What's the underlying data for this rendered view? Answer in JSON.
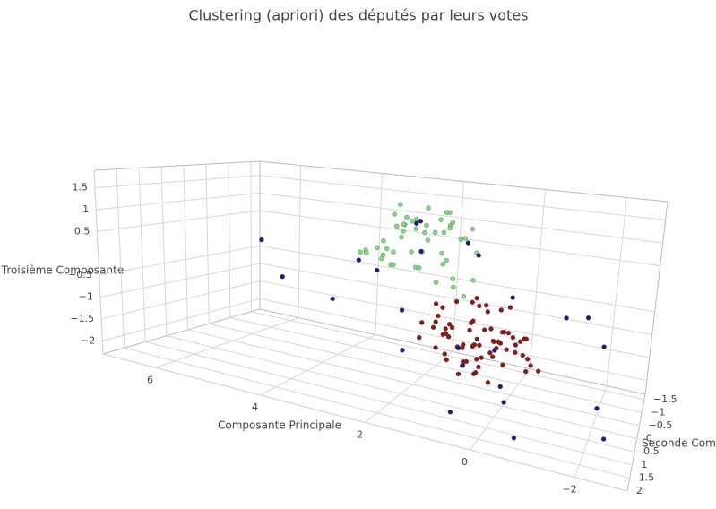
{
  "chart_data": {
    "type": "scatter3d",
    "title": "Clustering (apriori) des députés par leurs votes",
    "x_label": "Composante Principale",
    "y_label": "Seconde Composante",
    "z_label": "Troisième Composante",
    "xlim": [
      -3,
      7
    ],
    "ylim": [
      -1.7,
      2
    ],
    "zlim": [
      -2.3,
      1.9
    ],
    "xticks": [
      {
        "value": -2,
        "label": "−2"
      },
      0,
      2,
      4,
      6
    ],
    "yticks": [
      {
        "value": -1.5,
        "label": "−1.5"
      },
      {
        "value": -1,
        "label": "−1"
      },
      {
        "value": -0.5,
        "label": "−0.5"
      },
      0,
      0.5,
      1,
      1.5,
      2
    ],
    "zticks": [
      {
        "value": -2,
        "label": "−2"
      },
      {
        "value": -1.5,
        "label": "−1.5"
      },
      {
        "value": -1,
        "label": "−1"
      },
      {
        "value": -0.5,
        "label": "−0.5"
      },
      0.5,
      1,
      1.5
    ],
    "grid": true,
    "series": [
      {
        "color": "#7fdc7f",
        "x": [
          2.1,
          1.5,
          2.8,
          1.9,
          2.4,
          1.2,
          3.0,
          2.2,
          1.7,
          2.6,
          1.4,
          2.9,
          2.0,
          1.8,
          2.5,
          1.1,
          3.2,
          2.3,
          1.6,
          2.7,
          2.0,
          1.3,
          2.4,
          1.9,
          2.8,
          1.5,
          2.2,
          3.1,
          1.7,
          2.6,
          0.9,
          2.0,
          2.5,
          1.4,
          3.4,
          2.1,
          1.8,
          2.9,
          1.2,
          2.3,
          3.6,
          1.6,
          2.0,
          2.7,
          1.0,
          2.4,
          3.0,
          1.9,
          2.2,
          1.5
        ],
        "y": [
          -0.6,
          -0.2,
          -0.9,
          0.1,
          -1.1,
          -0.4,
          -0.3,
          0.4,
          -0.8,
          -1.3,
          0.2,
          -0.7,
          -0.5,
          -1.0,
          0.0,
          -0.9,
          -1.2,
          -0.1,
          0.5,
          -0.6,
          -1.4,
          -0.3,
          0.3,
          -0.8,
          -0.2,
          -1.1,
          -0.4,
          0.1,
          -0.6,
          -1.0,
          0.0,
          -0.3,
          -0.7,
          -1.2,
          -0.5,
          0.2,
          -0.9,
          -1.1,
          0.3,
          -0.4,
          -0.8,
          -0.1,
          -1.3,
          0.0,
          -0.6,
          -0.2,
          -0.5,
          -1.0,
          0.4,
          -0.7
        ],
        "z": [
          1.2,
          0.8,
          1.0,
          0.5,
          1.4,
          1.1,
          0.6,
          0.9,
          1.5,
          0.7,
          0.3,
          1.3,
          0.9,
          1.1,
          0.4,
          0.6,
          0.8,
          1.2,
          0.7,
          1.6,
          1.0,
          0.2,
          0.9,
          1.3,
          0.5,
          0.8,
          1.4,
          0.6,
          1.1,
          0.9,
          0.0,
          0.7,
          1.2,
          1.0,
          0.4,
          1.5,
          0.3,
          1.1,
          0.8,
          0.6,
          0.2,
          1.3,
          0.9,
          0.5,
          0.1,
          1.0,
          0.7,
          1.4,
          0.6,
          -0.2
        ]
      },
      {
        "color": "#8b1a1a",
        "x": [
          0.3,
          0.8,
          -0.2,
          0.5,
          1.1,
          0.0,
          0.6,
          -0.4,
          0.9,
          0.2,
          1.3,
          -0.1,
          0.4,
          0.7,
          -0.6,
          1.0,
          0.1,
          0.5,
          -0.3,
          0.8,
          1.2,
          0.3,
          -0.5,
          0.6,
          0.0,
          1.4,
          0.2,
          -0.2,
          0.9,
          0.4,
          1.6,
          -0.7,
          0.5,
          0.1,
          1.0,
          -0.4,
          0.7,
          0.3,
          1.5,
          -0.1,
          0.6,
          0.2,
          -0.8,
          1.1,
          0.4,
          0.0,
          0.8,
          -0.3,
          1.3,
          0.5,
          0.2,
          -0.6,
          0.9,
          0.1,
          1.2,
          0.3,
          -0.2,
          0.7,
          0.5,
          -0.9,
          1.0,
          0.2,
          0.6,
          -0.4,
          0.4,
          1.7,
          0.0,
          0.8,
          -0.1,
          0.3
        ],
        "y": [
          0.3,
          -0.1,
          0.6,
          0.9,
          0.2,
          -0.3,
          0.5,
          0.1,
          0.8,
          -0.5,
          0.4,
          1.0,
          0.0,
          0.7,
          0.3,
          -0.2,
          1.2,
          0.5,
          -0.4,
          0.2,
          0.6,
          0.9,
          0.0,
          -0.1,
          0.4,
          0.3,
          1.1,
          0.7,
          -0.6,
          0.2,
          0.5,
          0.8,
          -0.3,
          0.6,
          0.1,
          0.4,
          1.3,
          -0.2,
          0.0,
          0.5,
          0.9,
          0.2,
          0.6,
          0.7,
          -0.4,
          0.3,
          1.0,
          0.1,
          -0.1,
          0.4,
          0.8,
          0.2,
          0.5,
          -0.5,
          0.3,
          0.6,
          0.0,
          1.1,
          0.2,
          0.4,
          0.7,
          -0.3,
          0.1,
          0.9,
          0.5,
          0.2,
          0.6,
          -0.2,
          0.3,
          1.4
        ],
        "z": [
          -0.5,
          -0.8,
          -0.3,
          -1.0,
          -0.6,
          -0.2,
          -1.2,
          -0.7,
          -0.4,
          -0.9,
          -1.1,
          -0.6,
          -0.1,
          -0.8,
          -0.5,
          -1.3,
          -0.7,
          -0.3,
          -0.9,
          -1.0,
          -0.4,
          -0.6,
          -1.4,
          -0.2,
          -0.8,
          -0.7,
          -1.1,
          -0.5,
          -0.3,
          -1.2,
          -0.9,
          -0.6,
          -0.4,
          -1.5,
          -0.1,
          -0.8,
          -0.7,
          -1.0,
          -0.3,
          -0.6,
          -1.3,
          -0.5,
          -0.9,
          -0.2,
          -1.1,
          -0.7,
          -0.4,
          -0.8,
          -1.6,
          -0.3,
          -0.6,
          -1.0,
          -0.5,
          -0.9,
          -0.2,
          -1.2,
          -0.7,
          -0.4,
          -0.8,
          -1.1,
          -0.6,
          -0.3,
          -1.0,
          -0.5,
          -1.4,
          -0.7,
          -0.9,
          -0.2,
          -1.2,
          -0.8
        ]
      },
      {
        "color": "#1c1c8c",
        "x": [
          5.5,
          1.8,
          2.5,
          -1.5,
          -2.2,
          0.5,
          3.0,
          1.2,
          -0.8,
          0.0,
          2.2,
          -2.5,
          0.9,
          1.6,
          -1.2,
          4.2,
          0.3,
          -0.5,
          2.8,
          1.0,
          -2.0,
          0.6,
          1.9,
          -0.3,
          3.5
        ],
        "y": [
          -0.2,
          0.8,
          -1.0,
          -1.2,
          0.6,
          1.6,
          0.3,
          -0.7,
          1.8,
          0.5,
          -0.4,
          1.5,
          0.2,
          1.2,
          -0.5,
          0.9,
          -1.1,
          1.4,
          0.0,
          -0.8,
          -0.9,
          0.7,
          -0.1,
          1.0,
          0.4
        ],
        "z": [
          0.3,
          -0.2,
          1.1,
          -0.6,
          -1.5,
          -1.8,
          0.5,
          0.9,
          -1.9,
          -0.8,
          1.3,
          -1.6,
          -1.1,
          -0.9,
          -0.3,
          0.0,
          -0.4,
          -1.4,
          0.2,
          0.6,
          -1.0,
          -1.2,
          0.8,
          -1.3,
          -0.5
        ]
      }
    ]
  }
}
